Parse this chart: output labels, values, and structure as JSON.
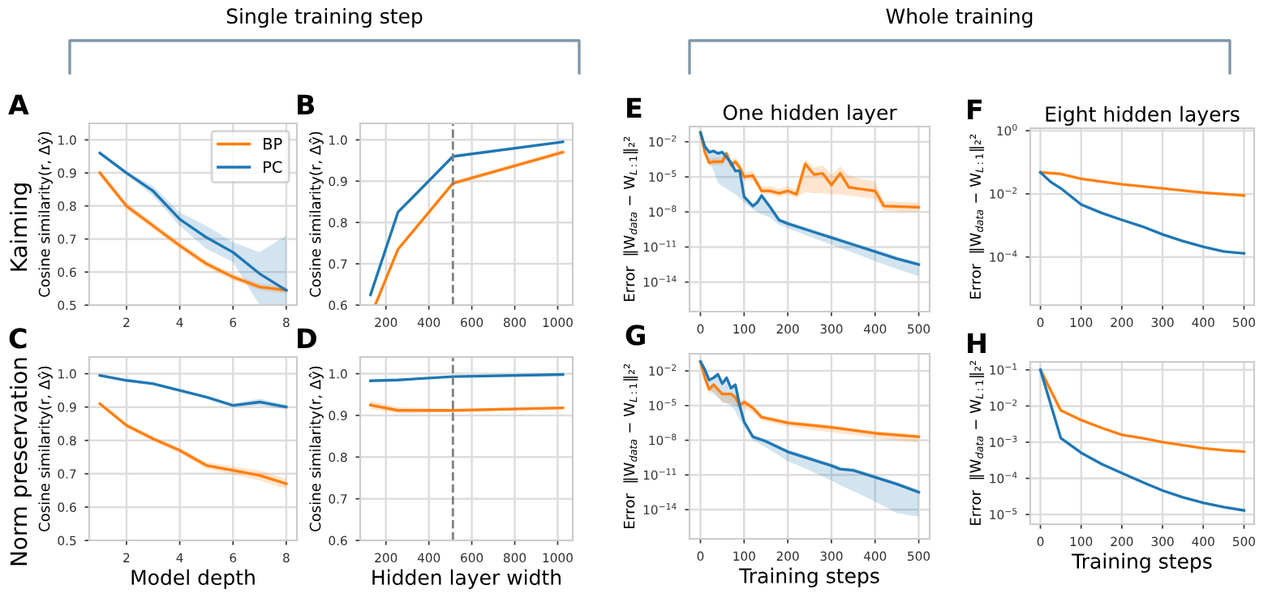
{
  "chart_data": [
    {
      "type": "line",
      "ylabel": "Cosine similarity(r, Δŷ)",
      "annotations": [
        "A",
        "Kaiming",
        "Single training step"
      ],
      "legend": "top right",
      "grid": true,
      "x": [
        1,
        2,
        3,
        4,
        5,
        6,
        7,
        8
      ],
      "xlim": [
        0.6,
        8.4
      ],
      "xticks": [
        2,
        4,
        6,
        8
      ],
      "ylim": [
        0.5,
        1.05
      ],
      "yticks": [
        0.5,
        0.6,
        0.7,
        0.8,
        0.9,
        {
          "value": 1,
          "label": "1.0"
        }
      ],
      "series": [
        {
          "name": "BP",
          "color": "#ff7f0e",
          "values": [
            0.9,
            0.8,
            0.74,
            0.68,
            0.625,
            0.585,
            0.555,
            0.545
          ],
          "lower": [
            0.89,
            0.79,
            0.73,
            0.67,
            0.615,
            0.575,
            0.545,
            0.535
          ],
          "upper": [
            0.91,
            0.81,
            0.75,
            0.69,
            0.635,
            0.595,
            0.565,
            0.555
          ]
        },
        {
          "name": "PC",
          "color": "#1f77b4",
          "values": [
            0.96,
            0.9,
            0.845,
            0.76,
            0.705,
            0.66,
            0.595,
            0.545
          ],
          "lower": [
            0.955,
            0.895,
            0.83,
            0.74,
            0.67,
            0.63,
            0.5,
            0.5
          ],
          "upper": [
            0.965,
            0.905,
            0.86,
            0.78,
            0.74,
            0.69,
            0.66,
            0.71
          ]
        }
      ]
    },
    {
      "type": "line",
      "ylabel": "Cosine similarity(r, Δŷ)",
      "annotations": [
        "B"
      ],
      "grid": true,
      "xlim": [
        80,
        1070
      ],
      "xticks": [
        200,
        400,
        600,
        800,
        1000
      ],
      "ylim": [
        0.6,
        1.04
      ],
      "yticks": [
        0.6,
        0.7,
        0.8,
        0.9,
        {
          "value": 1,
          "label": "1.0"
        }
      ],
      "ref_lines": [
        {
          "axis": "x",
          "value": 512,
          "color": "#808080",
          "line_style": "dashed"
        }
      ],
      "series": [
        {
          "color": "#ff7f0e",
          "x": [
            150,
            256,
            512,
            1024
          ],
          "values": [
            0.6,
            0.735,
            0.895,
            0.97
          ],
          "lower": [
            0.6,
            0.73,
            0.89,
            0.965
          ],
          "upper": [
            0.605,
            0.74,
            0.9,
            0.975
          ]
        },
        {
          "color": "#1f77b4",
          "x": [
            128,
            256,
            512,
            1024
          ],
          "values": [
            0.625,
            0.825,
            0.96,
            0.995
          ],
          "lower": [
            0.615,
            0.82,
            0.957,
            0.993
          ],
          "upper": [
            0.635,
            0.83,
            0.963,
            0.997
          ]
        }
      ]
    },
    {
      "type": "line",
      "ylabel": "Cosine similarity(r, Δŷ)",
      "xlabel": "Model depth",
      "annotations": [
        "C",
        "Norm preservation"
      ],
      "grid": true,
      "x": [
        1,
        2,
        3,
        4,
        5,
        6,
        7,
        8
      ],
      "xlim": [
        0.6,
        8.4
      ],
      "xticks": [
        2,
        4,
        6,
        8
      ],
      "ylim": [
        0.5,
        1.05
      ],
      "yticks": [
        0.5,
        0.6,
        0.7,
        0.8,
        0.9,
        {
          "value": 1,
          "label": "1.0"
        }
      ],
      "series": [
        {
          "color": "#ff7f0e",
          "values": [
            0.91,
            0.845,
            0.805,
            0.77,
            0.725,
            0.71,
            0.695,
            0.67
          ],
          "lower": [
            0.905,
            0.838,
            0.797,
            0.762,
            0.715,
            0.698,
            0.68,
            0.655
          ],
          "upper": [
            0.915,
            0.852,
            0.813,
            0.778,
            0.735,
            0.722,
            0.71,
            0.685
          ]
        },
        {
          "color": "#1f77b4",
          "values": [
            0.995,
            0.98,
            0.97,
            0.95,
            0.93,
            0.905,
            0.915,
            0.9
          ],
          "lower": [
            0.992,
            0.977,
            0.966,
            0.946,
            0.926,
            0.9,
            0.905,
            0.893
          ],
          "upper": [
            0.998,
            0.983,
            0.974,
            0.954,
            0.934,
            0.91,
            0.925,
            0.907
          ]
        }
      ]
    },
    {
      "type": "line",
      "ylabel": "Cosine similarity(r, Δŷ)",
      "xlabel": "Hidden layer width",
      "annotations": [
        "D"
      ],
      "grid": true,
      "x": [
        128,
        256,
        512,
        1024
      ],
      "xlim": [
        80,
        1070
      ],
      "xticks": [
        200,
        400,
        600,
        800,
        1000
      ],
      "ylim": [
        0.6,
        1.04
      ],
      "yticks": [
        0.6,
        0.7,
        0.8,
        0.9,
        {
          "value": 1,
          "label": "1.0"
        }
      ],
      "ref_lines": [
        {
          "axis": "x",
          "value": 512,
          "color": "#808080",
          "line_style": "dashed"
        }
      ],
      "series": [
        {
          "color": "#ff7f0e",
          "values": [
            0.925,
            0.912,
            0.912,
            0.918
          ],
          "lower": [
            0.915,
            0.905,
            0.908,
            0.915
          ],
          "upper": [
            0.935,
            0.92,
            0.916,
            0.921
          ]
        },
        {
          "color": "#1f77b4",
          "values": [
            0.983,
            0.985,
            0.993,
            0.998
          ]
        }
      ]
    },
    {
      "type": "line",
      "title": "One hidden layer",
      "ylabel": "Error  ‖W$_{data}$ − W$_{L:1}$‖₂²",
      "annotations": [
        "E",
        "Whole training"
      ],
      "grid": true,
      "log": "y",
      "xlim": [
        -25,
        525
      ],
      "xticks": [
        0,
        100,
        200,
        300,
        400,
        500
      ],
      "ylim": [
        3e-17,
        0.2
      ],
      "yticks": [
        {
          "value": 0.01,
          "label": "10$^{−2}$"
        },
        {
          "value": 1e-05,
          "label": "10$^{−5}$"
        },
        {
          "value": 1e-08,
          "label": "10$^{−8}$"
        },
        {
          "value": 1e-11,
          "label": "10$^{−11}$"
        },
        {
          "value": 1e-14,
          "label": "10$^{−14}$"
        }
      ],
      "series": [
        {
          "color": "#ff7f0e",
          "x": [
            0,
            10,
            20,
            30,
            50,
            60,
            70,
            80,
            90,
            100,
            120,
            140,
            160,
            180,
            200,
            220,
            240,
            260,
            280,
            300,
            320,
            340,
            360,
            400,
            420,
            500
          ],
          "values": [
            0.063,
            0.0013,
            0.00016,
            0.0002,
            0.0002,
            0.001,
            0.0001,
            0.0002,
            6.3e-05,
            1e-05,
            1.3e-05,
            6.3e-07,
            6.3e-07,
            4e-07,
            6.3e-07,
            3.2e-07,
            0.00013,
            1.6e-05,
            2e-05,
            2e-06,
            2e-05,
            1.3e-06,
            1e-06,
            6.3e-07,
            3.2e-08,
            2.5e-08
          ],
          "lower": [
            0.05,
            0.00063,
            7.9e-05,
            0.0001,
            0.0001,
            0.00032,
            5e-05,
            6.3e-05,
            2.5e-05,
            5e-06,
            5e-06,
            3.2e-07,
            3.2e-07,
            2e-07,
            3.2e-07,
            1.6e-07,
            5e-07,
            4e-07,
            4e-07,
            3.2e-07,
            3.2e-07,
            2.5e-07,
            2e-07,
            1.3e-07,
            1.3e-08,
            1e-08
          ],
          "upper": [
            0.079,
            0.0025,
            0.0004,
            0.0005,
            0.0005,
            0.0016,
            0.00025,
            0.0005,
            0.00016,
            2.5e-05,
            3.2e-05,
            1.6e-06,
            1.6e-06,
            1e-06,
            1.6e-06,
            7.9e-07,
            0.00032,
            6.3e-05,
            0.0001,
            1.6e-05,
            7.9e-05,
            1.3e-05,
            7.9e-06,
            4e-06,
            7.9e-08,
            6.3e-08
          ]
        },
        {
          "color": "#1f77b4",
          "x": [
            0,
            10,
            20,
            30,
            40,
            50,
            60,
            70,
            80,
            90,
            100,
            120,
            130,
            140,
            160,
            180,
            200,
            250,
            300,
            350,
            400,
            450,
            500
          ],
          "values": [
            0.063,
            0.004,
            0.0013,
            0.0016,
            0.001,
            0.0013,
            0.0005,
            0.00016,
            3.2e-05,
            3.2e-05,
            2e-07,
            3.2e-08,
            6.3e-08,
            2.5e-07,
            2.5e-08,
            2e-09,
            1e-09,
            2.5e-10,
            6.3e-11,
            1.6e-11,
            4e-12,
            1e-12,
            3.2e-13
          ],
          "lower": [
            0.05,
            0.0025,
            0.00025,
            3.2e-05,
            3.2e-06,
            1.6e-06,
            1e-06,
            5e-07,
            3.2e-07,
            1.6e-07,
            6.3e-08,
            1.6e-08,
            1e-08,
            6.3e-09,
            3.2e-09,
            7.9e-10,
            4e-10,
            7.9e-11,
            1.6e-11,
            3.2e-12,
            6.3e-13,
            1.3e-13,
            3.2e-14
          ],
          "upper": [
            0.1,
            0.0063,
            0.002,
            0.0025,
            0.0016,
            0.002,
            0.00079,
            0.00025,
            5e-05,
            5e-05,
            3.2e-07,
            5e-08,
            1e-07,
            4e-07,
            4e-08,
            3.2e-09,
            1.6e-09,
            4e-10,
            1e-10,
            2.5e-11,
            6.3e-12,
            1.6e-12,
            5e-13
          ]
        }
      ]
    },
    {
      "type": "line",
      "title": "Eight hidden layers",
      "ylabel": "Error  ‖W$_{data}$ − W$_{L:1}$‖₂²",
      "annotations": [
        "F"
      ],
      "grid": true,
      "log": "y",
      "xlim": [
        -25,
        525
      ],
      "xticks": [
        0,
        100,
        200,
        300,
        400,
        500
      ],
      "ylim": [
        3e-06,
        1.2
      ],
      "yticks": [
        {
          "value": 1,
          "label": "10$^{0}$"
        },
        {
          "value": 0.01,
          "label": "10$^{−2}$"
        },
        {
          "value": 0.0001,
          "label": "10$^{−4}$"
        }
      ],
      "series": [
        {
          "color": "#ff7f0e",
          "x": [
            0,
            50,
            100,
            200,
            300,
            400,
            500
          ],
          "values": [
            0.048,
            0.043,
            0.03,
            0.02,
            0.015,
            0.011,
            0.0089
          ]
        },
        {
          "color": "#1f77b4",
          "x": [
            0,
            25,
            50,
            100,
            150,
            200,
            250,
            300,
            350,
            400,
            450,
            500
          ],
          "values": [
            0.048,
            0.024,
            0.015,
            0.0046,
            0.0025,
            0.0015,
            0.00093,
            0.00052,
            0.00032,
            0.00021,
            0.00015,
            0.00013
          ]
        }
      ]
    },
    {
      "type": "line",
      "xlabel": "Training steps",
      "ylabel": "Error  ‖W$_{data}$ − W$_{L:1}$‖₂²",
      "annotations": [
        "G"
      ],
      "grid": true,
      "log": "y",
      "xlim": [
        -25,
        525
      ],
      "xticks": [
        0,
        100,
        200,
        300,
        400,
        500
      ],
      "ylim": [
        3e-17,
        0.3
      ],
      "yticks": [
        {
          "value": 0.01,
          "label": "10$^{−2}$"
        },
        {
          "value": 1e-05,
          "label": "10$^{−5}$"
        },
        {
          "value": 1e-08,
          "label": "10$^{−8}$"
        },
        {
          "value": 1e-11,
          "label": "10$^{−11}$"
        },
        {
          "value": 1e-14,
          "label": "10$^{−14}$"
        }
      ],
      "series": [
        {
          "color": "#ff7f0e",
          "x": [
            0,
            10,
            20,
            30,
            40,
            50,
            70,
            80,
            90,
            100,
            120,
            140,
            200,
            300,
            400,
            500
          ],
          "values": [
            0.063,
            0.0025,
            0.00025,
            0.00063,
            0.00025,
            0.0001,
            0.0001,
            5e-05,
            1e-05,
            2e-05,
            6.3e-06,
            1e-06,
            3.2e-07,
            1.3e-07,
            4e-08,
            2e-08
          ],
          "lower": [
            0.05,
            0.001,
            0.0001,
            0.00016,
            6.3e-05,
            1.6e-05,
            1.6e-05,
            1e-05,
            4e-06,
            6.3e-06,
            2.5e-06,
            5e-07,
            1.6e-07,
            5e-08,
            1.6e-08,
            6.3e-09
          ],
          "upper": [
            0.1,
            0.004,
            0.0004,
            0.001,
            0.0004,
            0.00016,
            0.00016,
            7.9e-05,
            2.5e-05,
            4e-05,
            1.3e-05,
            1.6e-06,
            5e-07,
            2e-07,
            6.3e-08,
            3.2e-08
          ]
        },
        {
          "color": "#1f77b4",
          "x": [
            0,
            10,
            20,
            30,
            40,
            50,
            60,
            70,
            80,
            90,
            100,
            120,
            150,
            200,
            250,
            300,
            320,
            350,
            400,
            450,
            500
          ],
          "values": [
            0.063,
            0.013,
            0.0016,
            0.0025,
            0.005,
            0.00079,
            0.0025,
            0.00032,
            0.00063,
            1e-05,
            4e-07,
            2e-08,
            7.9e-09,
            1e-09,
            2.5e-10,
            6.3e-11,
            3.2e-11,
            2.5e-11,
            6.3e-12,
            1.6e-12,
            3.2e-13
          ],
          "lower": [
            0.05,
            0.0032,
            0.00032,
            0.0001,
            5e-05,
            2.5e-05,
            1.6e-05,
            1e-05,
            3.2e-06,
            6.3e-07,
            1.6e-07,
            1e-08,
            2.5e-09,
            1.6e-10,
            2.5e-11,
            3.2e-12,
            1.3e-12,
            4e-13,
            5e-14,
            5e-15,
            2.5e-15
          ],
          "upper": [
            0.1,
            0.02,
            0.0025,
            0.004,
            0.0079,
            0.0013,
            0.004,
            0.0005,
            0.001,
            1.6e-05,
            6.3e-07,
            3.2e-08,
            1.3e-08,
            1.6e-09,
            4e-10,
            1e-10,
            5e-11,
            4e-11,
            1e-11,
            2.5e-12,
            5e-13
          ]
        }
      ]
    },
    {
      "type": "line",
      "xlabel": "Training steps",
      "ylabel": "Error  ‖W$_{data}$ − W$_{L:1}$‖₂²",
      "annotations": [
        "H"
      ],
      "grid": true,
      "log": "y",
      "xlim": [
        -25,
        525
      ],
      "xticks": [
        0,
        100,
        200,
        300,
        400,
        500
      ],
      "ylim": [
        5.4e-06,
        0.166
      ],
      "yticks": [
        {
          "value": 0.1,
          "label": "10$^{−1}$"
        },
        {
          "value": 0.01,
          "label": "10$^{−2}$"
        },
        {
          "value": 0.001,
          "label": "10$^{−3}$"
        },
        {
          "value": 0.0001,
          "label": "10$^{−4}$"
        },
        {
          "value": 1e-05,
          "label": "10$^{−5}$"
        }
      ],
      "series": [
        {
          "color": "#ff7f0e",
          "x": [
            0,
            50,
            100,
            150,
            200,
            250,
            300,
            350,
            400,
            450,
            500
          ],
          "values": [
            0.1,
            0.0076,
            0.0041,
            0.0025,
            0.0016,
            0.0013,
            0.001,
            0.00083,
            0.00068,
            0.0006,
            0.00055
          ]
        },
        {
          "color": "#1f77b4",
          "x": [
            0,
            50,
            100,
            150,
            200,
            250,
            300,
            350,
            400,
            450,
            500
          ],
          "values": [
            0.1,
            0.0013,
            0.00051,
            0.00025,
            0.00014,
            7.9e-05,
            4.6e-05,
            3e-05,
            2.1e-05,
            1.6e-05,
            1.3e-05
          ]
        }
      ]
    }
  ]
}
